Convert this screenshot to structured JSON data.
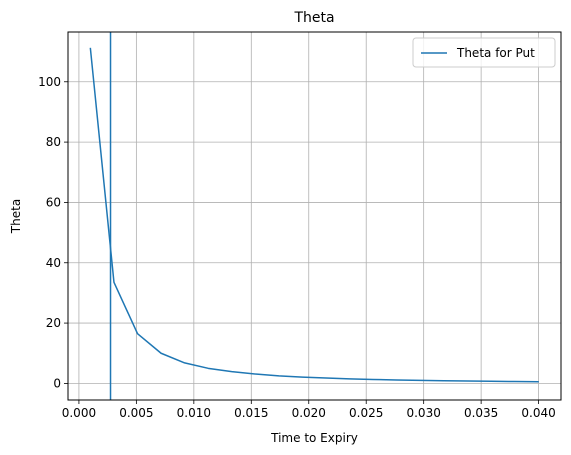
{
  "chart_data": {
    "type": "line",
    "title": "Theta",
    "xlabel": "Time to Expiry",
    "ylabel": "Theta",
    "xlim": [
      -0.00095,
      0.04195
    ],
    "ylim": [
      -5.5,
      116.5
    ],
    "x_ticks": [
      0.0,
      0.005,
      0.01,
      0.015,
      0.02,
      0.025,
      0.03,
      0.035,
      0.04
    ],
    "x_tick_labels": [
      "0.000",
      "0.005",
      "0.010",
      "0.015",
      "0.020",
      "0.025",
      "0.030",
      "0.035",
      "0.040"
    ],
    "y_ticks": [
      0,
      20,
      40,
      60,
      80,
      100
    ],
    "y_tick_labels": [
      "0",
      "20",
      "40",
      "60",
      "80",
      "100"
    ],
    "grid": true,
    "legend_position": "top-right",
    "series": [
      {
        "name": "Theta for Put",
        "color": "#1f77b4",
        "x": [
          0.001,
          0.00305,
          0.0051,
          0.00715,
          0.0092,
          0.01125,
          0.0133,
          0.01535,
          0.0174,
          0.01945,
          0.0215,
          0.02355,
          0.0256,
          0.02765,
          0.0297,
          0.03175,
          0.0338,
          0.03585,
          0.0379,
          0.03995
        ],
        "values": [
          111,
          33.5,
          16.5,
          10,
          6.8,
          5,
          3.9,
          3.1,
          2.5,
          2.1,
          1.8,
          1.5,
          1.3,
          1.15,
          1.0,
          0.9,
          0.8,
          0.7,
          0.62,
          0.55
        ]
      }
    ],
    "vertical_lines": [
      {
        "x": 0.00275,
        "color": "#1f77b4"
      }
    ]
  }
}
